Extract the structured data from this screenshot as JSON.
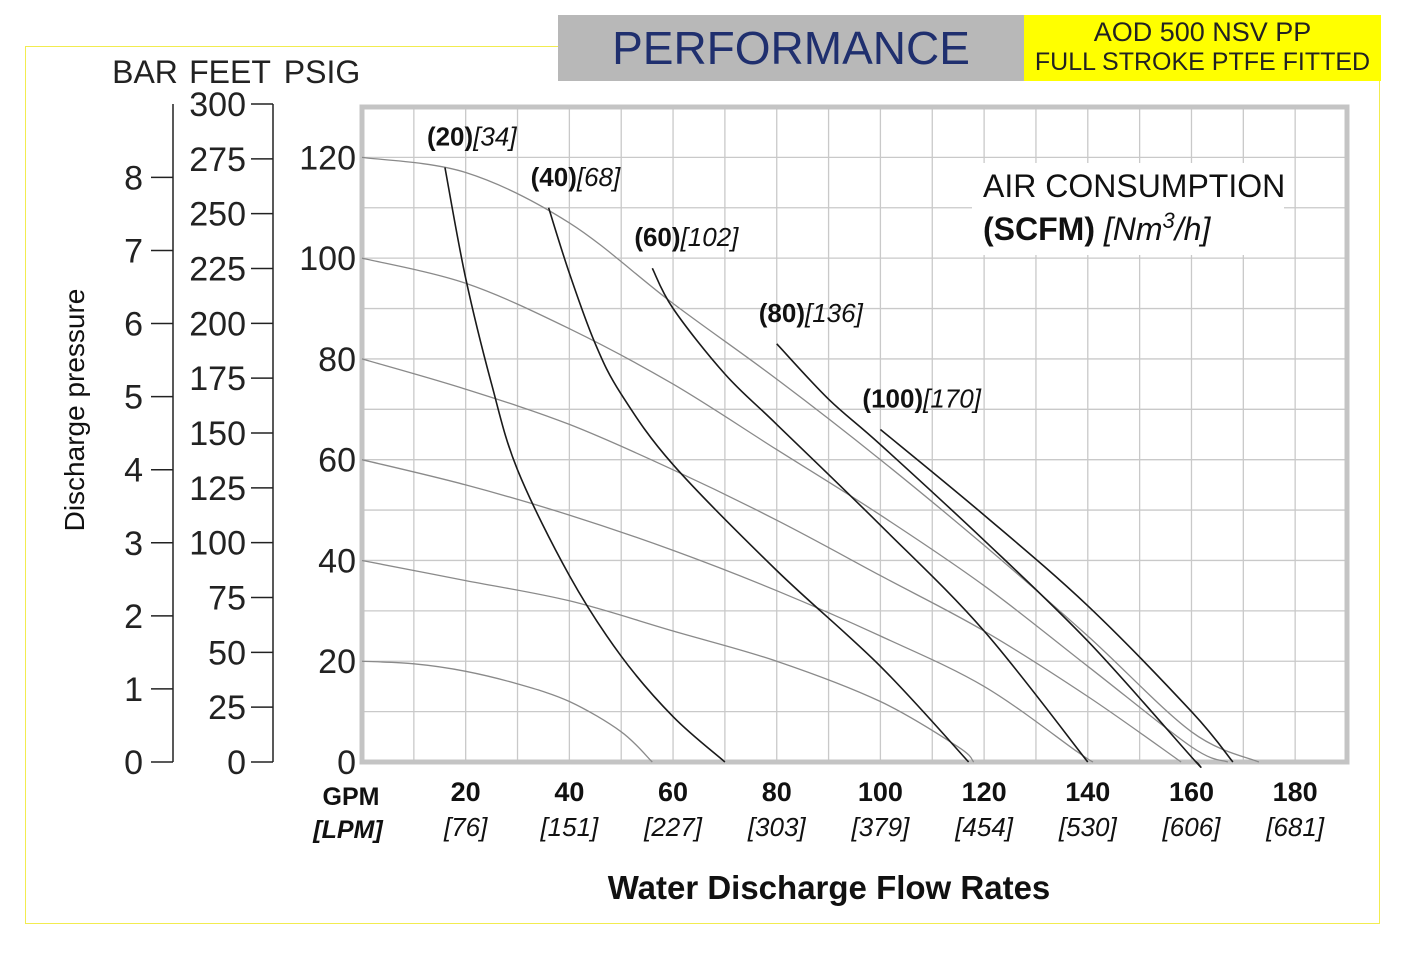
{
  "header": {
    "title": "PERFORMANCE",
    "model_line1": "AOD 500 NSV PP",
    "model_line2": "FULL STROKE PTFE FITTED"
  },
  "chart_data": {
    "type": "line",
    "title": "",
    "xlabel": "Water Discharge Flow Rates",
    "x_unit_label": "GPM",
    "x_unit_label_alt": "[LPM]",
    "x_ticks": [
      {
        "gpm": "20",
        "lpm": "[76]"
      },
      {
        "gpm": "40",
        "lpm": "[151]"
      },
      {
        "gpm": "60",
        "lpm": "[227]"
      },
      {
        "gpm": "80",
        "lpm": "[303]"
      },
      {
        "gpm": "100",
        "lpm": "[379]"
      },
      {
        "gpm": "120",
        "lpm": "[454]"
      },
      {
        "gpm": "140",
        "lpm": "[530]"
      },
      {
        "gpm": "160",
        "lpm": "[606]"
      },
      {
        "gpm": "180",
        "lpm": "[681]"
      }
    ],
    "xlim": [
      0,
      190
    ],
    "ylim": [
      0,
      130
    ],
    "ylabel": "Discharge pressure",
    "axis_headers": {
      "bar": "BAR",
      "feet": "FEET",
      "psig": "PSIG"
    },
    "psig_ticks": [
      "0",
      "20",
      "40",
      "60",
      "80",
      "100",
      "120"
    ],
    "feet_ticks": [
      "0",
      "25",
      "50",
      "75",
      "100",
      "125",
      "150",
      "175",
      "200",
      "225",
      "250",
      "275",
      "300"
    ],
    "bar_ticks": [
      "0",
      "1",
      "2",
      "3",
      "4",
      "5",
      "6",
      "7",
      "8"
    ],
    "grid": true,
    "legend_title_line1": "AIR CONSUMPTION",
    "legend_title_bold": "(SCFM)",
    "legend_title_italic_a": "[Nm",
    "legend_title_sup": "3",
    "legend_title_italic_b": "/h]",
    "pressure_curves": [
      {
        "inlet_psig": 120,
        "points": [
          [
            0,
            120
          ],
          [
            20,
            117
          ],
          [
            40,
            107
          ],
          [
            60,
            91
          ],
          [
            80,
            76
          ],
          [
            100,
            60
          ],
          [
            120,
            43
          ],
          [
            140,
            25
          ],
          [
            160,
            6
          ],
          [
            173,
            0
          ]
        ]
      },
      {
        "inlet_psig": 100,
        "points": [
          [
            0,
            100
          ],
          [
            20,
            95
          ],
          [
            40,
            86
          ],
          [
            60,
            75
          ],
          [
            80,
            62
          ],
          [
            100,
            49
          ],
          [
            120,
            35
          ],
          [
            140,
            19
          ],
          [
            160,
            3
          ],
          [
            167,
            0
          ]
        ]
      },
      {
        "inlet_psig": 80,
        "points": [
          [
            0,
            80
          ],
          [
            20,
            74
          ],
          [
            40,
            67
          ],
          [
            60,
            58
          ],
          [
            80,
            48
          ],
          [
            100,
            37
          ],
          [
            120,
            26
          ],
          [
            140,
            13
          ],
          [
            158,
            0
          ]
        ]
      },
      {
        "inlet_psig": 60,
        "points": [
          [
            0,
            60
          ],
          [
            20,
            55
          ],
          [
            40,
            49
          ],
          [
            60,
            42
          ],
          [
            80,
            34
          ],
          [
            100,
            25
          ],
          [
            120,
            15
          ],
          [
            138,
            2
          ],
          [
            141,
            0
          ]
        ]
      },
      {
        "inlet_psig": 40,
        "points": [
          [
            0,
            40
          ],
          [
            20,
            36
          ],
          [
            40,
            32
          ],
          [
            60,
            26
          ],
          [
            80,
            20
          ],
          [
            100,
            12
          ],
          [
            115,
            3
          ],
          [
            118,
            0
          ]
        ]
      },
      {
        "inlet_psig": 20,
        "points": [
          [
            0,
            20
          ],
          [
            10,
            19.5
          ],
          [
            20,
            18
          ],
          [
            30,
            15.5
          ],
          [
            40,
            12
          ],
          [
            50,
            6
          ],
          [
            56,
            0
          ]
        ]
      }
    ],
    "air_curves": [
      {
        "label_scfm": "(20)",
        "label_nm3h": "[34]",
        "points": [
          [
            16,
            118
          ],
          [
            20,
            96
          ],
          [
            25,
            75
          ],
          [
            30,
            58
          ],
          [
            40,
            37
          ],
          [
            50,
            21
          ],
          [
            60,
            9
          ],
          [
            70,
            0
          ]
        ]
      },
      {
        "label_scfm": "(40)",
        "label_nm3h": "[68]",
        "points": [
          [
            36,
            110
          ],
          [
            40,
            97
          ],
          [
            45,
            83
          ],
          [
            50,
            73
          ],
          [
            60,
            59
          ],
          [
            80,
            38
          ],
          [
            100,
            19
          ],
          [
            117,
            0
          ]
        ]
      },
      {
        "label_scfm": "(60)",
        "label_nm3h": "[102]",
        "points": [
          [
            56,
            98
          ],
          [
            60,
            90
          ],
          [
            70,
            77
          ],
          [
            80,
            67
          ],
          [
            100,
            47
          ],
          [
            120,
            26
          ],
          [
            140,
            0
          ]
        ]
      },
      {
        "label_scfm": "(80)",
        "label_nm3h": "[136]",
        "points": [
          [
            80,
            83
          ],
          [
            90,
            72
          ],
          [
            100,
            63
          ],
          [
            120,
            44
          ],
          [
            140,
            24
          ],
          [
            160,
            1
          ],
          [
            161,
            0
          ]
        ]
      },
      {
        "label_scfm": "(100)",
        "label_nm3h": "[170]",
        "points": [
          [
            100,
            66
          ],
          [
            120,
            49
          ],
          [
            140,
            31
          ],
          [
            160,
            10
          ],
          [
            168,
            0
          ]
        ]
      }
    ]
  }
}
